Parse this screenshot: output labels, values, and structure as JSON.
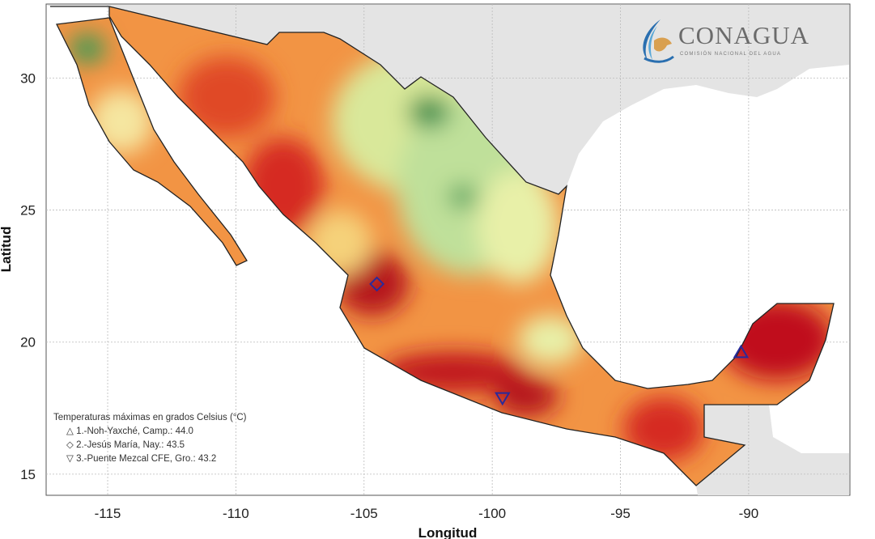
{
  "map": {
    "xlabel": "Longitud",
    "ylabel": "Latitud",
    "lon_ticks": [
      -115,
      -110,
      -105,
      -100,
      -95,
      -90
    ],
    "lat_ticks": [
      15,
      20,
      25,
      30
    ],
    "lon_range": [
      -117.4,
      -86.05
    ],
    "lat_range": [
      14.2,
      32.8
    ],
    "grid": true,
    "colors": {
      "ocean": "#ffffff",
      "foreign_land": "#e4e4e4",
      "hot": "#c81e1e",
      "warm": "#f08a3a",
      "mild": "#f7e79a",
      "cool": "#4aa35a"
    }
  },
  "legend": {
    "title": "Temperaturas máximas en grados Celsius (°C)",
    "items": [
      {
        "symbol": "△",
        "label": "1.-Noh-Yaxché, Camp.: 44.0",
        "lon": -90.3,
        "lat": 19.6,
        "marker": "triangle-up"
      },
      {
        "symbol": "◇",
        "label": "2.-Jesús María, Nay.: 43.5",
        "lon": -104.5,
        "lat": 22.2,
        "marker": "diamond"
      },
      {
        "symbol": "▽",
        "label": "3.-Puente Mezcal CFE, Gro.: 43.2",
        "lon": -99.6,
        "lat": 17.9,
        "marker": "triangle-down"
      }
    ]
  },
  "logo": {
    "name": "CONAGUA",
    "subtitle": "COMISIÓN NACIONAL DEL AGUA"
  }
}
